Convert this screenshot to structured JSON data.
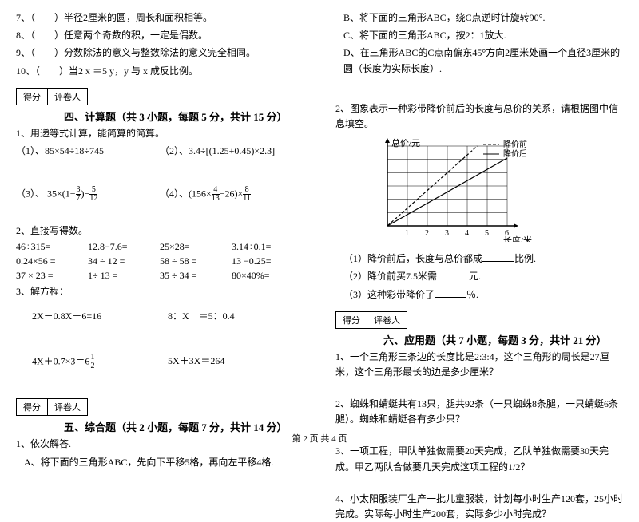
{
  "left": {
    "q7": "7、（　　）半径2厘米的圆，周长和面积相等。",
    "q8": "8、（　　）任意两个奇数的积，一定是偶数。",
    "q9": "9、（　　）分数除法的意义与整数除法的意义完全相同。",
    "q10": "10、（　　）当2 x ＝5 y，y 与 x 成反比例。",
    "score_a": "得分",
    "score_b": "评卷人",
    "sec4": "四、计算题（共 3 小题，每题 5 分，共计 15 分）",
    "q4_1": "1、用递等式计算，能简算的简算。",
    "q4_1_1": "（1）、85×54÷18÷745",
    "q4_1_2": "（2）、3.4÷[(1.25+0.45)×2.3]",
    "q4_1_3l": "（3）、 35×(1−",
    "q4_1_3_f1n": "3",
    "q4_1_3_f1d": "7",
    "q4_1_3m": ")−",
    "q4_1_3_f2n": "5",
    "q4_1_3_f2d": "12",
    "q4_1_4l": "（4）、(156×",
    "q4_1_4_f1n": "4",
    "q4_1_4_f1d": "13",
    "q4_1_4m": "−26)×",
    "q4_1_4_f2n": "8",
    "q4_1_4_f2d": "11",
    "q4_2": "2、直接写得数。",
    "r1a": "46÷315=",
    "r1b": "12.8−7.6=",
    "r1c": "25×28=",
    "r1d": "3.14÷0.1=",
    "r2a": "0.24×56 =",
    "r2b": "34 ÷ 12 =",
    "r2c": "58 ÷ 58 =",
    "r2d": "13 −0.25=",
    "r3a": "37 × 23 =",
    "r3b": "1÷ 13 =",
    "r3c": "35 ÷ 34 =",
    "r3d": "80×40%=",
    "q4_3": "3、解方程：",
    "e1": "2X－0.8X－6=16",
    "e2": "8：X　＝5：0.4",
    "e3l": "4X＋0.7×3＝6",
    "e3_fn": "1",
    "e3_fd": "2",
    "e4": "5X＋3X＝264",
    "sec5": "五、综合题（共 2 小题，每题 7 分，共计 14 分）",
    "q5_1": "1、依次解答.",
    "q5_1a": "A、将下面的三角形ABC，先向下平移5格，再向左平移4格."
  },
  "right": {
    "rb": "B、将下面的三角形ABC，绕C点逆时针旋转90°.",
    "rc": "C、将下面的三角形ABC，按2：1放大.",
    "rd": "D、在三角形ABC的C点南偏东45°方向2厘米处画一个直径3厘米的圆（长度为实际长度）.",
    "q2": "2、图象表示一种彩带降价前后的长度与总价的关系，请根据图中信息填空。",
    "legend1": "降价前",
    "legend2": "降价后",
    "ylabel": "总价/元",
    "xlabel": "长度/米",
    "xt1": "1",
    "xt2": "2",
    "xt3": "3",
    "xt4": "4",
    "xt5": "5",
    "xt6": "6",
    "s1l": "（1）降价前后，长度与总价都成",
    "s1r": "比例.",
    "s2l": "（2）降价前买7.5米需",
    "s2r": "元.",
    "s3l": "（3）这种彩带降价了",
    "s3r": "％.",
    "score_a": "得分",
    "score_b": "评卷人",
    "sec6": "六、应用题（共 7 小题，每题 3 分，共计 21 分）",
    "a1": "1、一个三角形三条边的长度比是2:3:4，这个三角形的周长是27厘米，这个三角形最长的边是多少厘米？",
    "a2": "2、蜘蛛和蜻蜓共有13只，腿共92条（一只蜘蛛8条腿，一只蜻蜓6条腿）。蜘蛛和蜻蜓各有多少只？",
    "a3": "3、一项工程，甲队单独做需要20天完成，乙队单独做需要30天完成。甲乙两队合做要几天完成这项工程的1/2？",
    "a4": "4、小太阳服装厂生产一批儿童服装，计划每小时生产120套，25小时完成。实际每小时生产200套，实际多少小时完成？"
  },
  "footer": "第 2 页 共 4 页",
  "chart": {
    "w": 150,
    "h": 100,
    "cols": 6,
    "rows": 6,
    "grid_color": "#000",
    "bg": "#fff",
    "line1_dash": "4,2",
    "line2_dash": "none"
  }
}
